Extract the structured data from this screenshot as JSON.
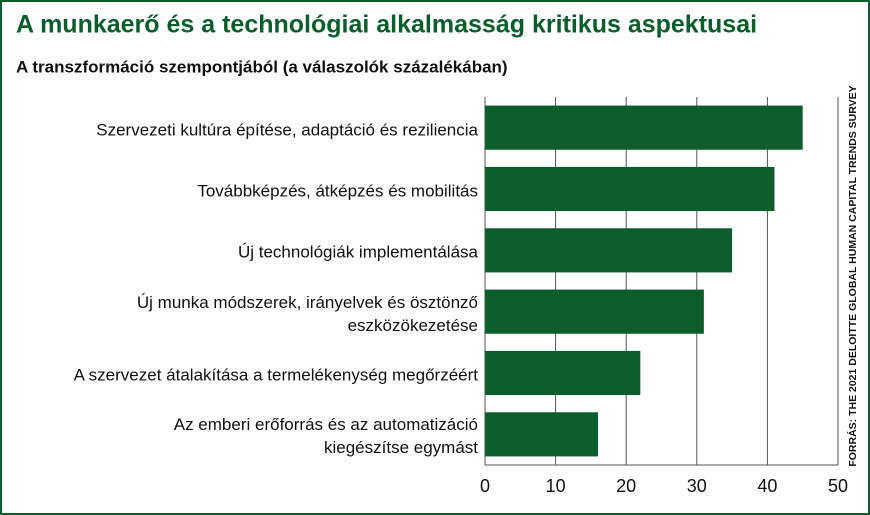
{
  "chart_data": {
    "type": "hbar",
    "title": "A munkaerő és a technológiai alkalmasság kritikus aspektusai",
    "subtitle": "A transzformáció szempontjából (a válaszolók százalékában)",
    "source": "FORRÁS: THE 2021 DELOITTE GLOBAL HUMAN CAPITAL TRENDS SURVEY",
    "categories": [
      "Szervezeti kultúra építése, adaptáció és reziliencia",
      "Továbbképzés, átképzés és mobilitás",
      "Új technológiák implementálása",
      "Új munka módszerek, irányelvek és ösztönző\neszközökezetése",
      "A szervezet átalakítása a termelékenység megőrzéért",
      "Az emberi erőforrás és az automatizáció\nkiegészítse egymást"
    ],
    "values": [
      45,
      41,
      35,
      31,
      22,
      16
    ],
    "color": "#0b5e2c",
    "xlim": [
      0,
      50
    ],
    "xticks": [
      0,
      10,
      20,
      30,
      40,
      50
    ],
    "grid": true
  }
}
